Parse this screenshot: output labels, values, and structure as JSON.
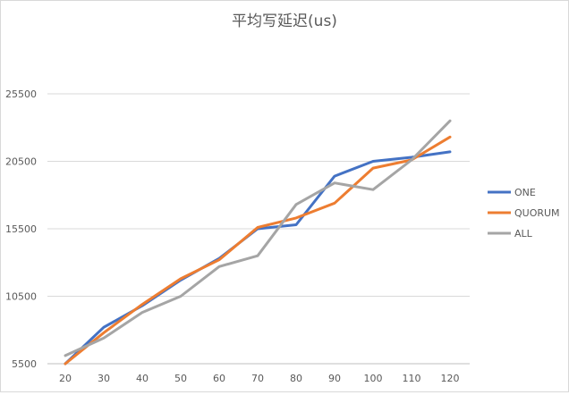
{
  "chart_data": {
    "type": "line",
    "title": "平均写延迟(us)",
    "xlabel": "",
    "ylabel": "",
    "categories": [
      "20",
      "30",
      "40",
      "50",
      "60",
      "70",
      "80",
      "90",
      "100",
      "110",
      "120"
    ],
    "y_ticks": [
      "5500",
      "10500",
      "15500",
      "20500",
      "25500"
    ],
    "ylim": [
      5500,
      25500
    ],
    "grid": true,
    "legend_position": "right",
    "series": [
      {
        "name": "ONE",
        "color": "#4472C4",
        "values": [
          5500,
          8200,
          9800,
          11700,
          13300,
          15500,
          15800,
          19400,
          20500,
          20800,
          21200
        ]
      },
      {
        "name": "QUORUM",
        "color": "#ED7D31",
        "values": [
          5500,
          7800,
          9900,
          11800,
          13200,
          15600,
          16300,
          17400,
          20000,
          20600,
          22300
        ]
      },
      {
        "name": "ALL",
        "color": "#A5A5A5",
        "values": [
          6100,
          7400,
          9300,
          10500,
          12700,
          13500,
          17300,
          18900,
          18400,
          20600,
          23500
        ]
      }
    ]
  }
}
